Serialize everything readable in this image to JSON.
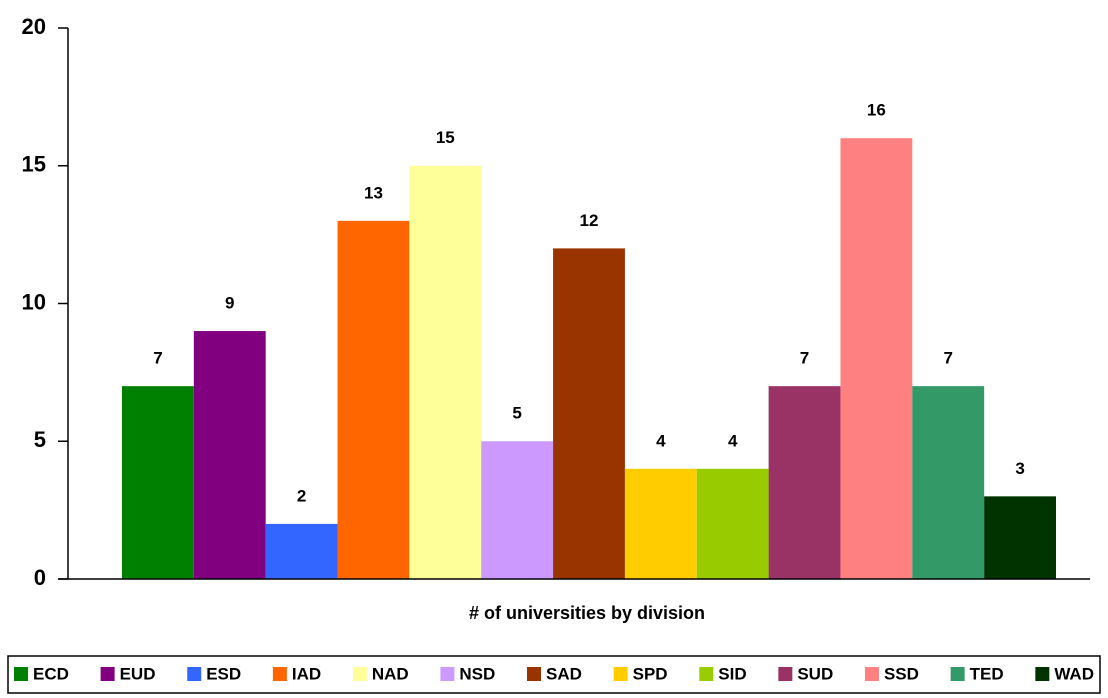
{
  "chart_data": {
    "type": "bar",
    "xlabel": "# of universities by division",
    "ylim": [
      0,
      20
    ],
    "yticks": [
      0,
      5,
      10,
      15,
      20
    ],
    "series": [
      {
        "name": "ECD",
        "color": "#008000",
        "values": [
          7
        ]
      },
      {
        "name": "EUD",
        "color": "#800080",
        "values": [
          9
        ]
      },
      {
        "name": "ESD",
        "color": "#3366ff",
        "values": [
          2
        ]
      },
      {
        "name": "IAD",
        "color": "#ff6600",
        "values": [
          13
        ]
      },
      {
        "name": "NAD",
        "color": "#ffff99",
        "values": [
          15
        ]
      },
      {
        "name": "NSD",
        "color": "#cc99ff",
        "values": [
          5
        ]
      },
      {
        "name": "SAD",
        "color": "#993300",
        "values": [
          12
        ]
      },
      {
        "name": "SPD",
        "color": "#ffcc00",
        "values": [
          4
        ]
      },
      {
        "name": "SID",
        "color": "#99cc00",
        "values": [
          4
        ]
      },
      {
        "name": "SUD",
        "color": "#993366",
        "values": [
          7
        ]
      },
      {
        "name": "SSD",
        "color": "#ff8080",
        "values": [
          16
        ]
      },
      {
        "name": "TED",
        "color": "#339966",
        "values": [
          7
        ]
      },
      {
        "name": "WAD",
        "color": "#003300",
        "values": [
          3
        ]
      }
    ],
    "legend": "bottom"
  }
}
